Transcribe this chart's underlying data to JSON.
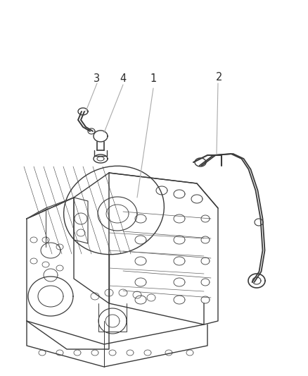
{
  "background_color": "#ffffff",
  "line_color": "#3a3a3a",
  "label_color": "#2a2a2a",
  "fig_width": 4.38,
  "fig_height": 5.33,
  "dpi": 100,
  "label_fontsize": 10.5
}
